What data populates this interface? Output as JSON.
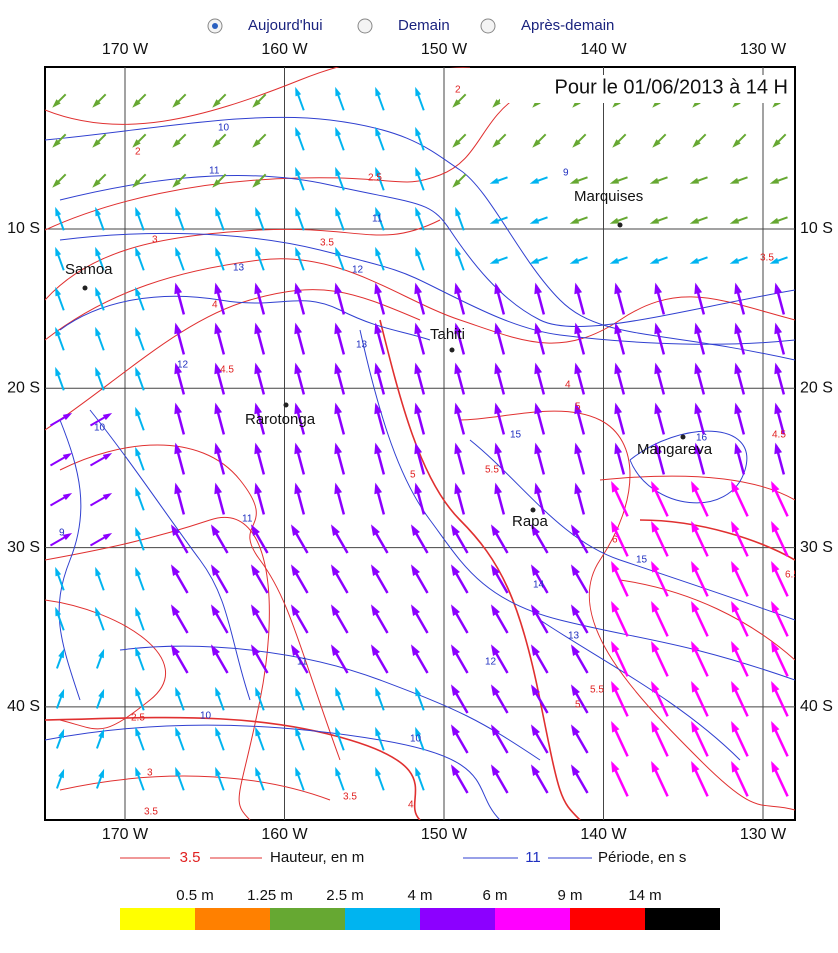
{
  "forecast_days": {
    "options": [
      "Aujourd'hui",
      "Demain",
      "Après-demain"
    ],
    "selected": 0
  },
  "title": "Pour le  01/06/2013  à 14 H",
  "longitudes": [
    "170 W",
    "160 W",
    "150 W",
    "140 W",
    "130 W"
  ],
  "latitudes": [
    "10 S",
    "20 S",
    "30 S",
    "40 S"
  ],
  "places": [
    "Samoa",
    "Marquises",
    "Tahiti",
    "Rarotonga",
    "Mangareva",
    "Rapa"
  ],
  "height_labels": [
    "2",
    "2",
    "2.5",
    "3",
    "3.5",
    "4",
    "4.5",
    "4",
    "4.5",
    "5",
    "5",
    "5.5",
    "6",
    "6.5",
    "3.5",
    "2.5",
    "3",
    "3.5",
    "5",
    "5.5",
    "4",
    "3.5"
  ],
  "period_labels": [
    "10",
    "11",
    "10",
    "11",
    "12",
    "13",
    "13",
    "12",
    "11",
    "15",
    "16",
    "15",
    "14",
    "13",
    "12",
    "11",
    "10",
    "9",
    "9",
    "10"
  ],
  "contour_legend": {
    "height": {
      "value": "3.5",
      "label": "Hauteur, en m"
    },
    "period": {
      "value": "11",
      "label": "Période, en s"
    }
  },
  "color_scale": {
    "labels": [
      "0.5 m",
      "1.25 m",
      "2.5 m",
      "4 m",
      "6 m",
      "9 m",
      "14 m"
    ],
    "colors": [
      "#ffff00",
      "#ff8000",
      "#66a832",
      "#00b4f0",
      "#8c00ff",
      "#ff00ff",
      "#ff0000",
      "#000000"
    ]
  }
}
